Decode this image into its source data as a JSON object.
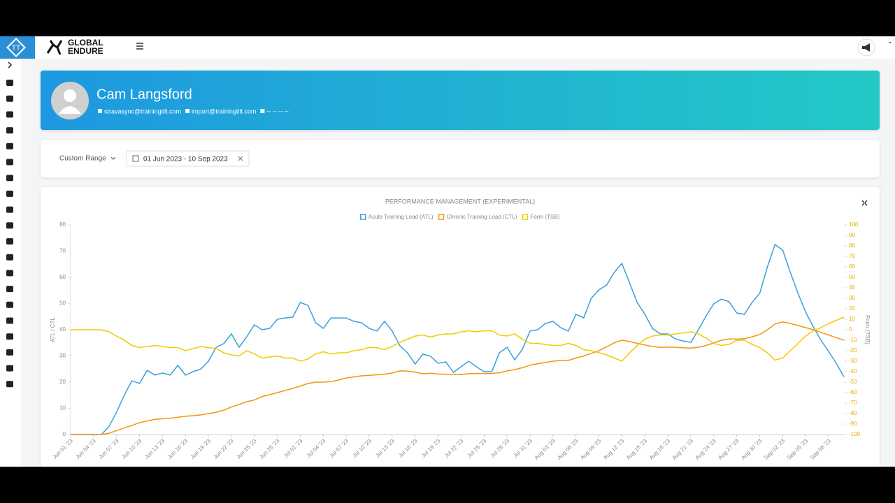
{
  "app": {
    "logo": "TT",
    "brand": [
      "GLOBAL",
      "ENDURE"
    ]
  },
  "profile": {
    "name": "Cam Langsford",
    "contacts": [
      "stravasync@trainingtilt.com",
      "import@trainingtilt.com",
      "-- -- -- --"
    ]
  },
  "filters": {
    "range_type": "Custom Range",
    "date_range": "01 Jun 2023 - 10 Sep 2023"
  },
  "chart_data": {
    "type": "line",
    "title": "PERFORMANCE MANAGEMENT (EXPERIMENTAL)",
    "ylabel": "ATL / CTL",
    "y2label": "Form (TSB)",
    "legend": "top",
    "grid": false,
    "categories": [
      "Jun 01 '23",
      null,
      null,
      "Jun 04 '23",
      null,
      null,
      "Jun 07 '23",
      null,
      null,
      "Jun 10 '23",
      null,
      null,
      "Jun 13 '23",
      null,
      null,
      "Jun 16 '23",
      null,
      null,
      "Jun 19 '23",
      null,
      null,
      "Jun 22 '23",
      null,
      null,
      "Jun 25 '23",
      null,
      null,
      "Jun 28 '23",
      null,
      null,
      "Jul 01 '23",
      null,
      null,
      "Jul 04 '23",
      null,
      null,
      "Jul 07 '23",
      null,
      null,
      "Jul 10 '23",
      null,
      null,
      "Jul 13 '23",
      null,
      null,
      "Jul 16 '23",
      null,
      null,
      "Jul 19 '23",
      null,
      null,
      "Jul 22 '23",
      null,
      null,
      "Jul 25 '23",
      null,
      null,
      "Jul 28 '23",
      null,
      null,
      "Jul 31 '23",
      null,
      null,
      "Aug 03 '23",
      null,
      null,
      "Aug 06 '23",
      null,
      null,
      "Aug 09 '23",
      null,
      null,
      "Aug 12 '23",
      null,
      null,
      "Aug 15 '23",
      null,
      null,
      "Aug 18 '23",
      null,
      null,
      "Aug 21 '23",
      null,
      null,
      "Aug 24 '23",
      null,
      null,
      "Aug 27 '23",
      null,
      null,
      "Aug 30 '23",
      null,
      null,
      "Sep 02 '23",
      null,
      null,
      "Sep 05 '23",
      null,
      null,
      "Sep 08 '23",
      null,
      null
    ],
    "series": [
      {
        "name": "Acute Training Load (ATL)",
        "color": "#3aa0d8",
        "values": [
          0,
          0,
          0,
          0,
          0,
          3,
          8.5,
          15,
          20.5,
          19.5,
          24.5,
          22.7,
          23.5,
          22.7,
          26.4,
          22.7,
          24,
          25,
          28,
          33.3,
          34.7,
          38.4,
          33.3,
          37.3,
          41.9,
          40,
          40.5,
          44,
          44.5,
          44.8,
          50.4,
          49.3,
          42.7,
          40.5,
          44.5,
          44.5,
          44.5,
          43.2,
          42.7,
          40.5,
          39.5,
          43.2,
          39.5,
          33.9,
          31.2,
          26.9,
          30.7,
          29.9,
          27.2,
          27.7,
          23.7,
          25.9,
          28,
          25.9,
          24,
          24,
          31.2,
          33.3,
          28.5,
          32.5,
          39.5,
          40,
          42.4,
          43.2,
          40.8,
          39.5,
          45.9,
          44.5,
          52,
          55.2,
          57,
          61.9,
          65.3,
          57.9,
          50.4,
          45.9,
          40.5,
          38.4,
          38.4,
          36.5,
          35.7,
          35.2,
          40,
          45.3,
          49.9,
          51.7,
          50.7,
          46.4,
          45.9,
          50.4,
          53.9,
          64,
          72.5,
          70.4,
          61.9,
          53.9,
          46.7,
          41.1,
          36,
          31.7,
          27.2,
          22
        ]
      },
      {
        "name": "Chronic Training Load (CTL)",
        "color": "#f0960f",
        "values": [
          0,
          0,
          0,
          0,
          0,
          0.5,
          1.5,
          2.5,
          3.5,
          4.5,
          5.2,
          5.8,
          6,
          6.2,
          6.6,
          7,
          7.2,
          7.5,
          8,
          8.5,
          9.3,
          10.5,
          11.5,
          12.5,
          13.2,
          14.5,
          15.2,
          16,
          16.8,
          17.6,
          18.5,
          19.5,
          20,
          20,
          20.2,
          20.8,
          21.6,
          22,
          22.4,
          22.6,
          22.8,
          23,
          23.5,
          24.3,
          24.2,
          23.8,
          23.2,
          23.4,
          23.1,
          23,
          23,
          22.9,
          23.2,
          23.3,
          23.3,
          23.3,
          23.6,
          24.3,
          24.8,
          25.5,
          26.5,
          27,
          27.5,
          28,
          28.3,
          28.3,
          29.2,
          30,
          31,
          32,
          33.5,
          35,
          36,
          35.5,
          34.8,
          34.2,
          33.6,
          33.3,
          33.4,
          33.3,
          33.1,
          33,
          33.3,
          34,
          35,
          36,
          36.5,
          36.4,
          36.6,
          37.3,
          38.2,
          40,
          42.2,
          43,
          42.4,
          41.6,
          40.8,
          40,
          39,
          38,
          37,
          36
        ]
      },
      {
        "name": "Form (TSB)",
        "color": "#f5c800",
        "axis": "y2",
        "values": [
          0,
          0,
          0,
          0,
          0,
          -2,
          -6,
          -10,
          -15,
          -17,
          -16,
          -15,
          -16,
          -17,
          -17,
          -20,
          -18,
          -16,
          -17,
          -18,
          -22,
          -24,
          -25,
          -20,
          -23,
          -27,
          -26,
          -25,
          -27,
          -27,
          -30,
          -28,
          -23,
          -21,
          -23,
          -22,
          -22,
          -20,
          -19,
          -17,
          -17,
          -19,
          -16,
          -12,
          -9,
          -6,
          -5,
          -7,
          -5,
          -4,
          -4,
          -2,
          -1,
          -2,
          -1,
          -1,
          -5,
          -6,
          -4,
          -9,
          -13,
          -13,
          -14,
          -15,
          -15,
          -13,
          -15,
          -19,
          -20,
          -22,
          -24,
          -27,
          -30,
          -22,
          -15,
          -9,
          -6,
          -5,
          -5,
          -4,
          -3,
          -2,
          -4,
          -8,
          -13,
          -15,
          -14,
          -10,
          -10,
          -14,
          -17,
          -22,
          -29,
          -27,
          -20,
          -13,
          -6,
          -1,
          2,
          6,
          9,
          12
        ]
      }
    ],
    "ylim": [
      0,
      80
    ],
    "yticks": [
      0,
      10,
      20,
      30,
      40,
      50,
      60,
      70,
      80
    ],
    "y2lim": [
      -100,
      100
    ],
    "y2ticks": [
      -100,
      -90,
      -80,
      -70,
      -60,
      -50,
      -40,
      -30,
      -20,
      -10,
      0,
      10,
      20,
      30,
      40,
      50,
      60,
      70,
      80,
      90,
      100
    ]
  }
}
